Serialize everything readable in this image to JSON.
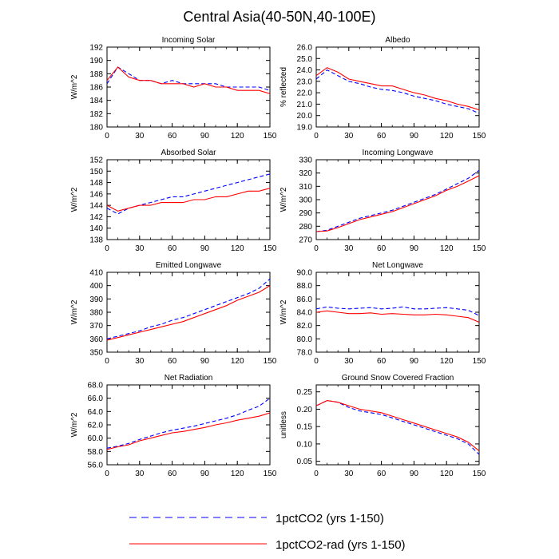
{
  "title": "Central Asia(40-50N,40-100E)",
  "colors": {
    "series_1": "#0000ff",
    "series_2": "#ff0000",
    "axes": "#000000"
  },
  "legend": {
    "placement": "bottom-center",
    "entries": [
      {
        "label": "1pctCO2 (yrs 1-150)",
        "style": "dashed",
        "color": "#0000ff"
      },
      {
        "label": "1pctCO2-rad (yrs 1-150)",
        "style": "solid",
        "color": "#ff0000"
      }
    ]
  },
  "chart_data": [
    {
      "type": "line",
      "title": "Incoming Solar",
      "xlabel": "",
      "ylabel": "W/m^2",
      "xlim": [
        0,
        150
      ],
      "ylim": [
        180,
        192
      ],
      "xticks": [
        "0",
        "30",
        "60",
        "90",
        "120",
        "150"
      ],
      "yticks": [
        "180",
        "182",
        "184",
        "186",
        "188",
        "190",
        "192"
      ],
      "series": [
        {
          "name": "1pctCO2 (yrs 1-150)",
          "style": "dashed",
          "x": [
            0,
            10,
            20,
            30,
            40,
            50,
            60,
            70,
            80,
            90,
            100,
            110,
            120,
            130,
            140,
            150
          ],
          "y": [
            186.5,
            189,
            188,
            187,
            187,
            186.5,
            187,
            186.5,
            186.5,
            186.5,
            186.5,
            186,
            186,
            186,
            186,
            185.5
          ]
        },
        {
          "name": "1pctCO2-rad (yrs 1-150)",
          "style": "solid",
          "x": [
            0,
            10,
            20,
            30,
            40,
            50,
            60,
            70,
            80,
            90,
            100,
            110,
            120,
            130,
            140,
            150
          ],
          "y": [
            187,
            189,
            187.5,
            187,
            187,
            186.5,
            186.5,
            186.5,
            186,
            186.5,
            186,
            186,
            185.5,
            185.5,
            185.5,
            185
          ]
        }
      ]
    },
    {
      "type": "line",
      "title": "Albedo",
      "xlabel": "",
      "ylabel": "% reflected",
      "xlim": [
        0,
        150
      ],
      "ylim": [
        19.0,
        26.0
      ],
      "xticks": [
        "0",
        "30",
        "60",
        "90",
        "120",
        "150"
      ],
      "yticks": [
        "19.0",
        "20.0",
        "21.0",
        "22.0",
        "23.0",
        "24.0",
        "25.0",
        "26.0"
      ],
      "series": [
        {
          "name": "1pctCO2 (yrs 1-150)",
          "style": "dashed",
          "x": [
            0,
            10,
            20,
            30,
            40,
            50,
            60,
            70,
            80,
            90,
            100,
            110,
            120,
            130,
            140,
            150
          ],
          "y": [
            23.2,
            24.0,
            23.5,
            23.0,
            22.8,
            22.5,
            22.3,
            22.2,
            22.0,
            21.7,
            21.5,
            21.3,
            21.0,
            20.8,
            20.6,
            20.2
          ]
        },
        {
          "name": "1pctCO2-rad (yrs 1-150)",
          "style": "solid",
          "x": [
            0,
            10,
            20,
            30,
            40,
            50,
            60,
            70,
            80,
            90,
            100,
            110,
            120,
            130,
            140,
            150
          ],
          "y": [
            23.5,
            24.2,
            23.8,
            23.2,
            23.0,
            22.8,
            22.6,
            22.6,
            22.3,
            22.0,
            21.8,
            21.5,
            21.3,
            21.0,
            20.8,
            20.5
          ]
        }
      ]
    },
    {
      "type": "line",
      "title": "Absorbed Solar",
      "xlabel": "",
      "ylabel": "W/m^2",
      "xlim": [
        0,
        150
      ],
      "ylim": [
        138,
        152
      ],
      "xticks": [
        "0",
        "30",
        "60",
        "90",
        "120",
        "150"
      ],
      "yticks": [
        "138",
        "140",
        "142",
        "144",
        "146",
        "148",
        "150",
        "152"
      ],
      "series": [
        {
          "name": "1pctCO2 (yrs 1-150)",
          "style": "dashed",
          "x": [
            0,
            10,
            20,
            30,
            40,
            50,
            60,
            70,
            80,
            90,
            100,
            110,
            120,
            130,
            140,
            150
          ],
          "y": [
            143.5,
            142.5,
            143.5,
            144,
            144.5,
            145,
            145.5,
            145.5,
            146,
            146.5,
            147,
            147.5,
            148,
            148.5,
            149,
            149.5
          ]
        },
        {
          "name": "1pctCO2-rad (yrs 1-150)",
          "style": "solid",
          "x": [
            0,
            10,
            20,
            30,
            40,
            50,
            60,
            70,
            80,
            90,
            100,
            110,
            120,
            130,
            140,
            150
          ],
          "y": [
            144,
            143,
            143.5,
            144,
            144,
            144.5,
            144.5,
            144.5,
            145,
            145,
            145.5,
            145.5,
            146,
            146.5,
            146.5,
            147
          ]
        }
      ]
    },
    {
      "type": "line",
      "title": "Incoming Longwave",
      "xlabel": "",
      "ylabel": "W/m^2",
      "xlim": [
        0,
        150
      ],
      "ylim": [
        270,
        330
      ],
      "xticks": [
        "0",
        "30",
        "60",
        "90",
        "120",
        "150"
      ],
      "yticks": [
        "270",
        "280",
        "290",
        "300",
        "310",
        "320",
        "330"
      ],
      "series": [
        {
          "name": "1pctCO2 (yrs 1-150)",
          "style": "dashed",
          "x": [
            0,
            10,
            20,
            30,
            40,
            50,
            60,
            70,
            80,
            90,
            100,
            110,
            120,
            130,
            140,
            150
          ],
          "y": [
            276,
            277,
            280,
            283,
            286,
            288,
            290,
            292,
            295,
            298,
            301,
            304,
            308,
            312,
            316,
            322
          ]
        },
        {
          "name": "1pctCO2-rad (yrs 1-150)",
          "style": "solid",
          "x": [
            0,
            10,
            20,
            30,
            40,
            50,
            60,
            70,
            80,
            90,
            100,
            110,
            120,
            130,
            140,
            150
          ],
          "y": [
            276,
            276.5,
            279,
            282,
            285,
            287,
            289,
            291,
            294,
            297,
            300,
            303,
            307,
            310,
            314,
            318
          ]
        }
      ]
    },
    {
      "type": "line",
      "title": "Emitted Longwave",
      "xlabel": "",
      "ylabel": "W/m^2",
      "xlim": [
        0,
        150
      ],
      "ylim": [
        350,
        410
      ],
      "xticks": [
        "0",
        "30",
        "60",
        "90",
        "120",
        "150"
      ],
      "yticks": [
        "350",
        "360",
        "370",
        "380",
        "390",
        "400",
        "410"
      ],
      "series": [
        {
          "name": "1pctCO2 (yrs 1-150)",
          "style": "dashed",
          "x": [
            0,
            10,
            20,
            30,
            40,
            50,
            60,
            70,
            80,
            90,
            100,
            110,
            120,
            130,
            140,
            150
          ],
          "y": [
            360,
            362,
            364,
            366,
            369,
            371,
            374,
            376,
            379,
            382,
            385,
            388,
            391,
            394,
            398,
            405
          ]
        },
        {
          "name": "1pctCO2-rad (yrs 1-150)",
          "style": "solid",
          "x": [
            0,
            10,
            20,
            30,
            40,
            50,
            60,
            70,
            80,
            90,
            100,
            110,
            120,
            130,
            140,
            150
          ],
          "y": [
            359,
            361,
            363,
            365,
            367,
            369,
            371,
            373,
            376,
            379,
            382,
            385,
            389,
            392,
            395,
            400
          ]
        }
      ]
    },
    {
      "type": "line",
      "title": "Net Longwave",
      "xlabel": "",
      "ylabel": "W/m^2",
      "xlim": [
        0,
        150
      ],
      "ylim": [
        78.0,
        90.0
      ],
      "xticks": [
        "0",
        "30",
        "60",
        "90",
        "120",
        "150"
      ],
      "yticks": [
        "78.0",
        "80.0",
        "82.0",
        "84.0",
        "86.0",
        "88.0",
        "90.0"
      ],
      "series": [
        {
          "name": "1pctCO2 (yrs 1-150)",
          "style": "dashed",
          "x": [
            0,
            10,
            20,
            30,
            40,
            50,
            60,
            70,
            80,
            90,
            100,
            110,
            120,
            130,
            140,
            150
          ],
          "y": [
            84.5,
            84.8,
            84.6,
            84.5,
            84.6,
            84.7,
            84.5,
            84.6,
            84.8,
            84.5,
            84.5,
            84.6,
            84.7,
            84.5,
            84.3,
            83.5
          ]
        },
        {
          "name": "1pctCO2-rad (yrs 1-150)",
          "style": "solid",
          "x": [
            0,
            10,
            20,
            30,
            40,
            50,
            60,
            70,
            80,
            90,
            100,
            110,
            120,
            130,
            140,
            150
          ],
          "y": [
            84.0,
            84.2,
            84.0,
            83.8,
            83.8,
            83.9,
            83.7,
            83.8,
            83.7,
            83.6,
            83.6,
            83.7,
            83.6,
            83.4,
            83.2,
            82.5
          ]
        }
      ]
    },
    {
      "type": "line",
      "title": "Net Radiation",
      "xlabel": "",
      "ylabel": "W/m^2",
      "xlim": [
        0,
        150
      ],
      "ylim": [
        56.0,
        68.0
      ],
      "xticks": [
        "0",
        "30",
        "60",
        "90",
        "120",
        "150"
      ],
      "yticks": [
        "56.0",
        "58.0",
        "60.0",
        "62.0",
        "64.0",
        "66.0",
        "68.0"
      ],
      "series": [
        {
          "name": "1pctCO2 (yrs 1-150)",
          "style": "dashed",
          "x": [
            0,
            10,
            20,
            30,
            40,
            50,
            60,
            70,
            80,
            90,
            100,
            110,
            120,
            130,
            140,
            150
          ],
          "y": [
            58.5,
            58.8,
            59.2,
            59.8,
            60.3,
            60.8,
            61.2,
            61.5,
            61.8,
            62.2,
            62.6,
            63.0,
            63.5,
            64.2,
            64.8,
            66.0
          ]
        },
        {
          "name": "1pctCO2-rad (yrs 1-150)",
          "style": "solid",
          "x": [
            0,
            10,
            20,
            30,
            40,
            50,
            60,
            70,
            80,
            90,
            100,
            110,
            120,
            130,
            140,
            150
          ],
          "y": [
            58.3,
            58.7,
            59.0,
            59.6,
            60.0,
            60.4,
            60.8,
            61.0,
            61.3,
            61.6,
            62.0,
            62.3,
            62.7,
            63.0,
            63.3,
            63.8
          ]
        }
      ]
    },
    {
      "type": "line",
      "title": "Ground Snow Covered Fraction",
      "xlabel": "",
      "ylabel": "unitless",
      "xlim": [
        0,
        150
      ],
      "ylim": [
        0.04,
        0.27
      ],
      "xticks": [
        "0",
        "30",
        "60",
        "90",
        "120",
        "150"
      ],
      "yticks": [
        "0.05",
        "0.10",
        "0.15",
        "0.20",
        "0.25"
      ],
      "series": [
        {
          "name": "1pctCO2 (yrs 1-150)",
          "style": "dashed",
          "x": [
            0,
            10,
            20,
            30,
            40,
            50,
            60,
            70,
            80,
            90,
            100,
            110,
            120,
            130,
            140,
            150
          ],
          "y": [
            0.21,
            0.225,
            0.22,
            0.205,
            0.195,
            0.19,
            0.185,
            0.175,
            0.165,
            0.155,
            0.145,
            0.135,
            0.125,
            0.115,
            0.1,
            0.07
          ]
        },
        {
          "name": "1pctCO2-rad (yrs 1-150)",
          "style": "solid",
          "x": [
            0,
            10,
            20,
            30,
            40,
            50,
            60,
            70,
            80,
            90,
            100,
            110,
            120,
            130,
            140,
            150
          ],
          "y": [
            0.21,
            0.225,
            0.22,
            0.21,
            0.2,
            0.195,
            0.19,
            0.18,
            0.17,
            0.16,
            0.15,
            0.14,
            0.13,
            0.12,
            0.105,
            0.08
          ]
        }
      ]
    }
  ]
}
